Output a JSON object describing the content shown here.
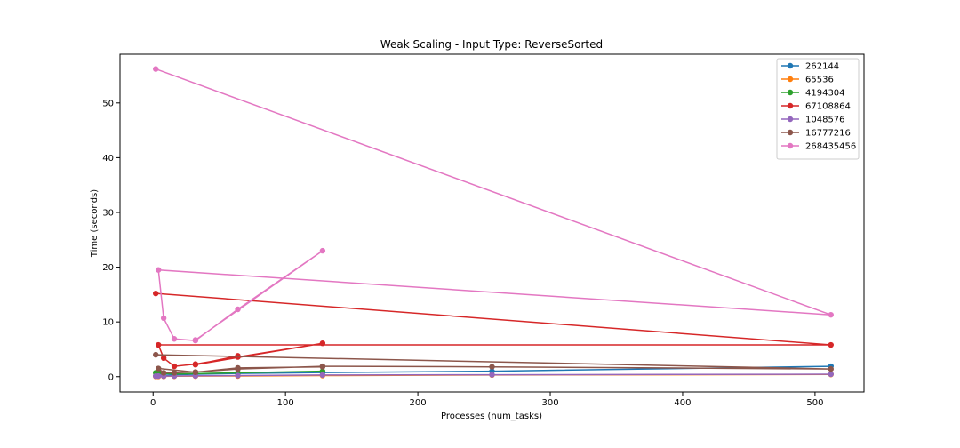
{
  "chart_data": {
    "type": "line",
    "title": "Weak Scaling - Input Type: ReverseSorted",
    "xlabel": "Processes (num_tasks)",
    "ylabel": "Time (seconds)",
    "xlim": [
      -25,
      537
    ],
    "ylim": [
      -2.8,
      58.9
    ],
    "xticks": [
      0,
      100,
      200,
      300,
      400,
      500
    ],
    "yticks": [
      0,
      10,
      20,
      30,
      40,
      50
    ],
    "grid": false,
    "legend_position": "top-right",
    "series": [
      {
        "name": "262144",
        "color": "#1f77b4",
        "x": [
          2,
          4,
          8,
          16,
          32,
          64,
          128,
          256,
          512
        ],
        "y": [
          0.15,
          0.2,
          0.25,
          0.35,
          0.45,
          0.6,
          0.75,
          1.0,
          1.9
        ]
      },
      {
        "name": "65536",
        "color": "#ff7f0e",
        "x": [
          2,
          4,
          8,
          16,
          32,
          64,
          128,
          256,
          512
        ],
        "y": [
          0.05,
          0.05,
          0.06,
          0.08,
          0.1,
          0.12,
          0.2,
          0.3,
          0.4
        ]
      },
      {
        "name": "4194304",
        "color": "#2ca02c",
        "x": [
          2,
          4,
          8,
          16,
          32,
          64,
          128
        ],
        "y": [
          0.7,
          0.75,
          0.6,
          0.5,
          0.55,
          0.7,
          1.0
        ]
      },
      {
        "name": "67108864",
        "color": "#d62728",
        "x": [
          2,
          512,
          4,
          8,
          16,
          32,
          64,
          128,
          32,
          64
        ],
        "y": [
          15.2,
          5.8,
          5.8,
          3.4,
          1.9,
          2.3,
          3.6,
          6.1,
          2.2,
          3.8
        ]
      },
      {
        "name": "1048576",
        "color": "#9467bd",
        "x": [
          2,
          4,
          8,
          16,
          32,
          64,
          128,
          256,
          512
        ],
        "y": [
          0.1,
          0.12,
          0.1,
          0.12,
          0.15,
          0.2,
          0.3,
          0.35,
          0.45
        ]
      },
      {
        "name": "16777216",
        "color": "#8c564b",
        "x": [
          2,
          512,
          256,
          128,
          64,
          32,
          16,
          8,
          4,
          32,
          64,
          128
        ],
        "y": [
          4.0,
          1.4,
          1.8,
          1.9,
          1.4,
          0.85,
          0.7,
          0.7,
          1.5,
          0.8,
          1.6,
          1.8
        ]
      },
      {
        "name": "268435456",
        "color": "#e377c2",
        "x": [
          2,
          512,
          4,
          8,
          16,
          32,
          64,
          128,
          32
        ],
        "y": [
          56.2,
          11.3,
          19.5,
          10.7,
          6.9,
          6.6,
          12.3,
          23.0,
          6.7
        ]
      }
    ]
  }
}
